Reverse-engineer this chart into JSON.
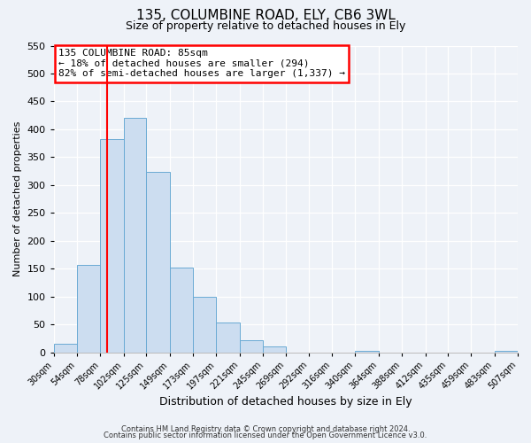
{
  "title1": "135, COLUMBINE ROAD, ELY, CB6 3WL",
  "title2": "Size of property relative to detached houses in Ely",
  "xlabel": "Distribution of detached houses by size in Ely",
  "ylabel": "Number of detached properties",
  "bar_left_edges": [
    30,
    54,
    78,
    102,
    125,
    149,
    173,
    197,
    221,
    245,
    269,
    292,
    316,
    340,
    364,
    388,
    412,
    435,
    459,
    483
  ],
  "bar_widths": [
    24,
    24,
    24,
    23,
    24,
    24,
    24,
    24,
    24,
    24,
    23,
    24,
    24,
    24,
    24,
    24,
    23,
    24,
    24,
    24
  ],
  "bar_heights": [
    15,
    157,
    383,
    420,
    323,
    152,
    100,
    54,
    22,
    10,
    0,
    0,
    0,
    2,
    0,
    0,
    0,
    0,
    0,
    2
  ],
  "tick_labels": [
    "30sqm",
    "54sqm",
    "78sqm",
    "102sqm",
    "125sqm",
    "149sqm",
    "173sqm",
    "197sqm",
    "221sqm",
    "245sqm",
    "269sqm",
    "292sqm",
    "316sqm",
    "340sqm",
    "364sqm",
    "388sqm",
    "412sqm",
    "435sqm",
    "459sqm",
    "483sqm",
    "507sqm"
  ],
  "tick_positions": [
    30,
    54,
    78,
    102,
    125,
    149,
    173,
    197,
    221,
    245,
    269,
    292,
    316,
    340,
    364,
    388,
    412,
    435,
    459,
    483,
    507
  ],
  "bar_color": "#ccddf0",
  "bar_edge_color": "#6aaad4",
  "vline_x": 85,
  "vline_color": "red",
  "ylim": [
    0,
    550
  ],
  "xlim": [
    30,
    507
  ],
  "yticks": [
    0,
    50,
    100,
    150,
    200,
    250,
    300,
    350,
    400,
    450,
    500,
    550
  ],
  "annotation_title": "135 COLUMBINE ROAD: 85sqm",
  "annotation_line1": "← 18% of detached houses are smaller (294)",
  "annotation_line2": "82% of semi-detached houses are larger (1,337) →",
  "annotation_box_color": "#ffffff",
  "annotation_border_color": "red",
  "footer1": "Contains HM Land Registry data © Crown copyright and database right 2024.",
  "footer2": "Contains public sector information licensed under the Open Government Licence v3.0.",
  "bg_color": "#eef2f8",
  "plot_bg_color": "#eef2f8",
  "grid_color": "#ffffff",
  "title1_fontsize": 11,
  "title2_fontsize": 9,
  "xlabel_fontsize": 9,
  "ylabel_fontsize": 8,
  "ytick_fontsize": 8,
  "xtick_fontsize": 7,
  "footer_fontsize": 6,
  "ann_fontsize": 8
}
